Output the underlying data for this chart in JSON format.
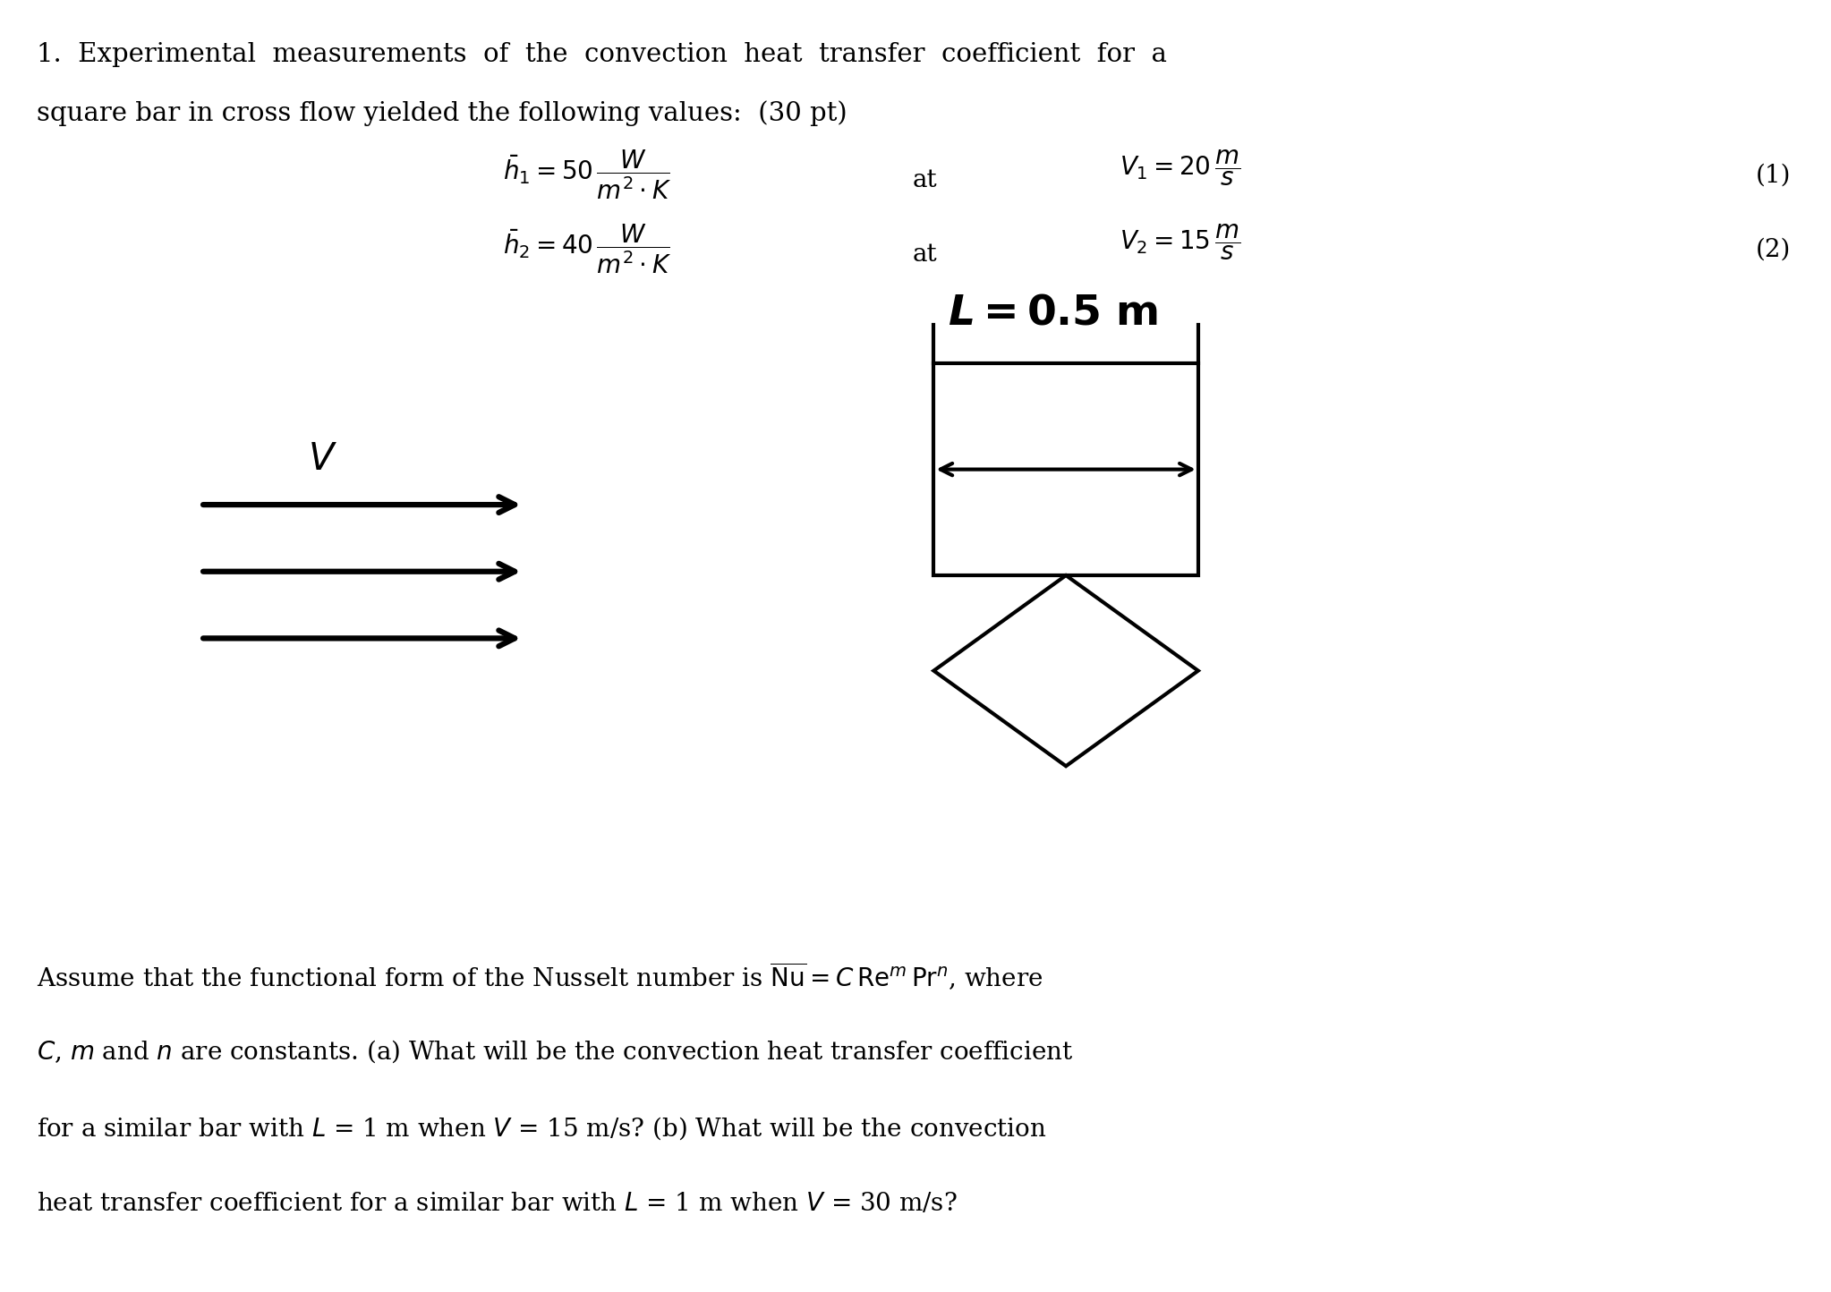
{
  "bg_color": "#ffffff",
  "text_color": "#000000",
  "title_line1": "1.  Experimental  measurements  of  the  convection  heat  transfer  coefficient  for  a",
  "title_line2": "square bar in cross flow yielded the following values:  (30 pt)",
  "eq1_lhs": "$\\bar{h}_1 = 50\\,\\dfrac{W}{m^2 \\cdot K}$",
  "eq1_at": "at",
  "eq1_rhs": "$V_1 = 20\\,\\dfrac{m}{s}$",
  "eq1_num": "(1)",
  "eq2_lhs": "$\\bar{h}_2 = 40\\,\\dfrac{W}{m^2 \\cdot K}$",
  "eq2_at": "at",
  "eq2_rhs": "$V_2 = 15\\,\\dfrac{m}{s}$",
  "eq2_num": "(2)",
  "L_label": "$\\boldsymbol{L}$ $\\mathbf{= 0.5}$ $\\mathbf{m}$",
  "V_label": "$V$",
  "bottom_text_line1": "Assume that the functional form of the Nusselt number is $\\overline{\\mathrm{Nu}} = C\\,\\mathrm{Re}^{m}\\,\\mathrm{Pr}^{n}$, where",
  "bottom_text_line2": "$C$, $m$ and $n$ are constants. (a) What will be the convection heat transfer coefficient",
  "bottom_text_line3": "for a similar bar with $L$ = 1 m when $V$ = 15 m/s? (b) What will be the convection",
  "bottom_text_line4": "heat transfer coefficient for a similar bar with $L$ = 1 m when $V$ = 30 m/s?"
}
